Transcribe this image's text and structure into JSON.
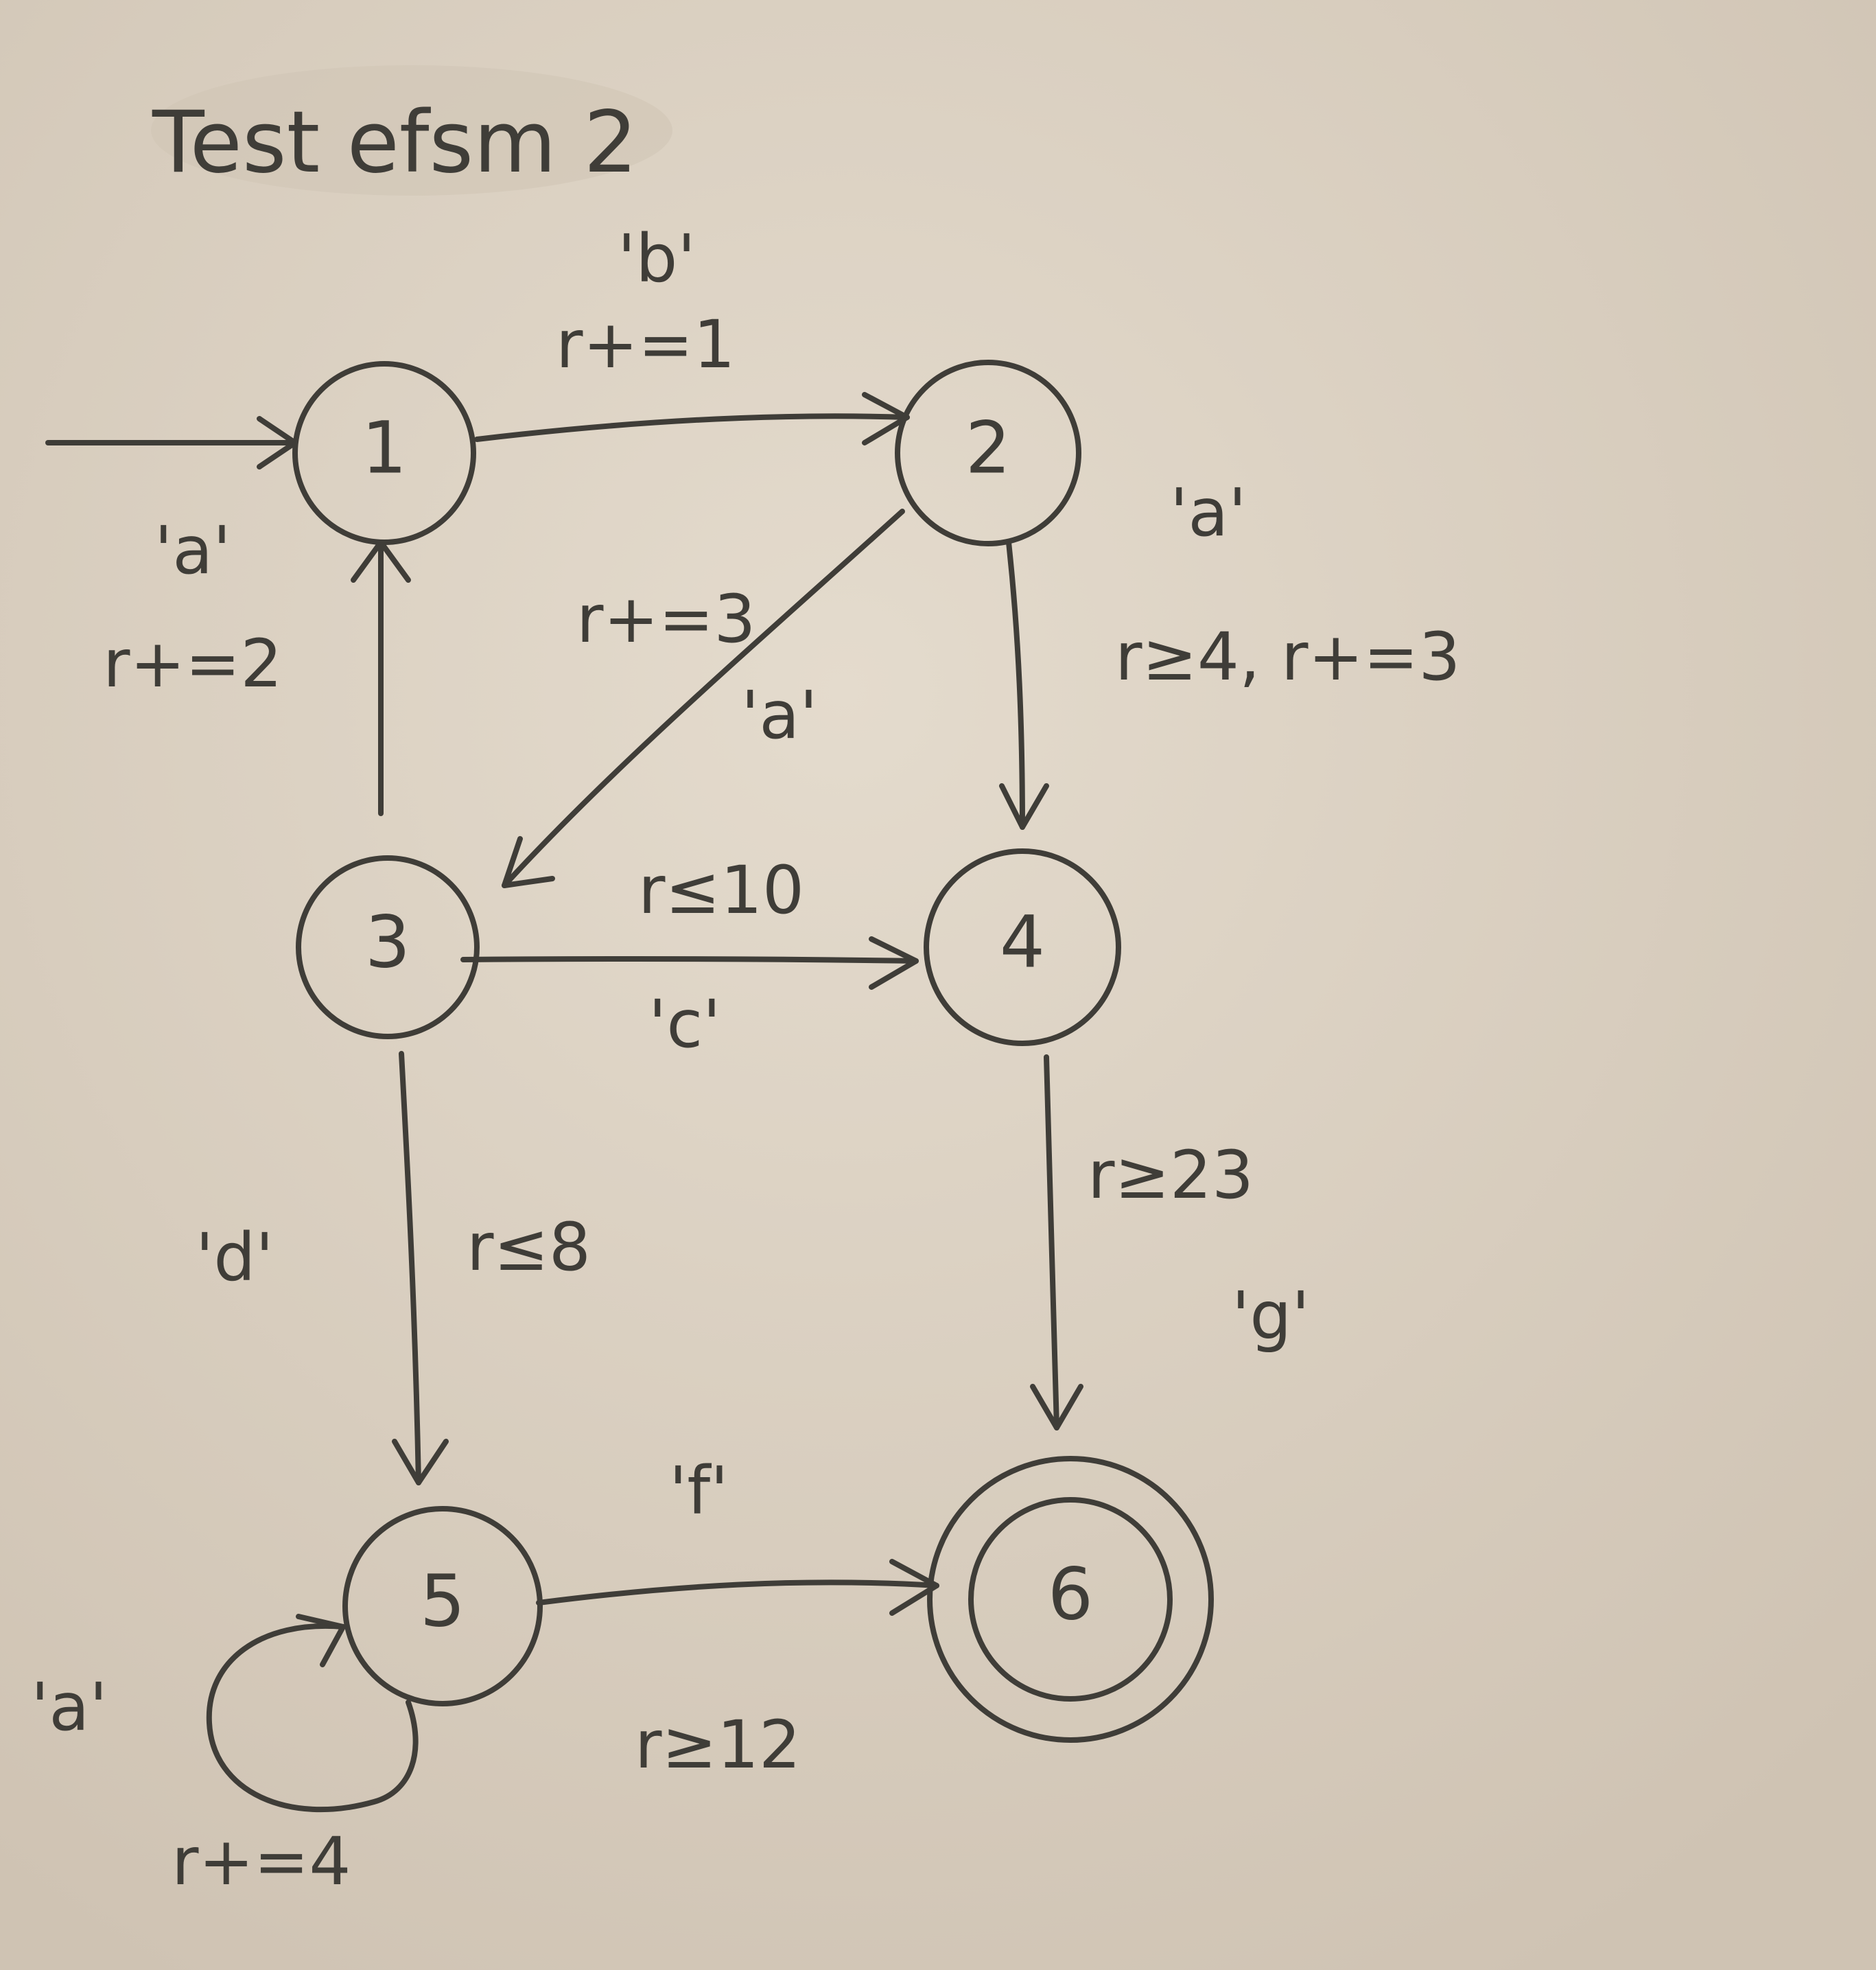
{
  "title": "Test efsm 2",
  "colors": {
    "paper": "#dcd2c3",
    "ink": "#3f3d38"
  },
  "states": [
    {
      "id": "1",
      "label": "1",
      "initial": true,
      "final": false
    },
    {
      "id": "2",
      "label": "2",
      "initial": false,
      "final": false
    },
    {
      "id": "3",
      "label": "3",
      "initial": false,
      "final": false
    },
    {
      "id": "4",
      "label": "4",
      "initial": false,
      "final": false
    },
    {
      "id": "5",
      "label": "5",
      "initial": false,
      "final": false
    },
    {
      "id": "6",
      "label": "6",
      "initial": false,
      "final": true
    }
  ],
  "transitions": [
    {
      "from": "1",
      "to": "2",
      "label": "'b'",
      "guard_update": "r+=1"
    },
    {
      "from": "2",
      "to": "4",
      "label": "'a'",
      "guard_update": "r≥4, r+=3"
    },
    {
      "from": "2",
      "to": "3",
      "label": "'a'",
      "guard_update": "r+=3"
    },
    {
      "from": "3",
      "to": "1",
      "label": "'a'",
      "guard_update": "r+=2"
    },
    {
      "from": "3",
      "to": "4",
      "label": "'c'",
      "guard_update": "r≤10"
    },
    {
      "from": "3",
      "to": "5",
      "label": "'d'",
      "guard_update": "r≤8"
    },
    {
      "from": "4",
      "to": "6",
      "label": "'g'",
      "guard_update": "r≥23"
    },
    {
      "from": "5",
      "to": "6",
      "label": "'f'",
      "guard_update": "r≥12"
    },
    {
      "from": "5",
      "to": "5",
      "label": "'a'",
      "guard_update": "r+=4"
    }
  ]
}
